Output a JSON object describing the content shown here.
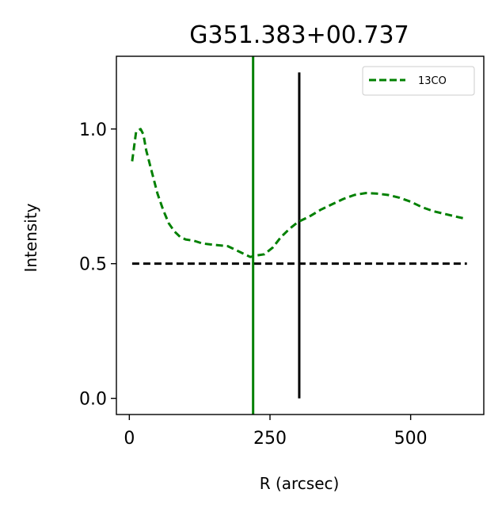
{
  "chart_data": {
    "type": "line",
    "title": "G351.383+00.737",
    "xlabel": "R (arcsec)",
    "ylabel": "Intensity",
    "xlim": [
      -23,
      630
    ],
    "ylim": [
      -0.06,
      1.27
    ],
    "xticks": [
      0,
      250,
      500
    ],
    "xtick_labels": [
      "0",
      "250",
      "500"
    ],
    "yticks": [
      0.0,
      0.5,
      1.0
    ],
    "ytick_labels": [
      "0.0",
      "0.5",
      "1.0"
    ],
    "grid": false,
    "legend_position": "top-right",
    "series": [
      {
        "name": "13CO",
        "color": "#008000",
        "style": "dashed",
        "x": [
          5,
          12,
          20,
          25,
          30,
          40,
          50,
          60,
          70,
          80,
          90,
          100,
          115,
          130,
          150,
          175,
          200,
          215,
          225,
          240,
          255,
          270,
          285,
          300,
          320,
          340,
          360,
          380,
          400,
          420,
          440,
          460,
          480,
          500,
          520,
          540,
          560,
          580,
          595
        ],
        "y": [
          0.88,
          0.99,
          1.0,
          0.98,
          0.92,
          0.84,
          0.76,
          0.7,
          0.65,
          0.62,
          0.6,
          0.59,
          0.585,
          0.575,
          0.57,
          0.565,
          0.54,
          0.525,
          0.53,
          0.535,
          0.56,
          0.6,
          0.63,
          0.655,
          0.675,
          0.7,
          0.72,
          0.74,
          0.755,
          0.762,
          0.76,
          0.755,
          0.745,
          0.73,
          0.71,
          0.695,
          0.685,
          0.675,
          0.668
        ]
      }
    ],
    "reference_lines": [
      {
        "orientation": "horizontal",
        "y": 0.5,
        "x_range": [
          5,
          600
        ],
        "color": "#000000",
        "style": "dashed"
      },
      {
        "orientation": "vertical",
        "x": 220,
        "y_range": [
          -0.06,
          1.27
        ],
        "color": "#008000",
        "style": "solid"
      },
      {
        "orientation": "vertical",
        "x": 302,
        "y_range": [
          0.0,
          1.21
        ],
        "color": "#000000",
        "style": "solid"
      }
    ]
  }
}
